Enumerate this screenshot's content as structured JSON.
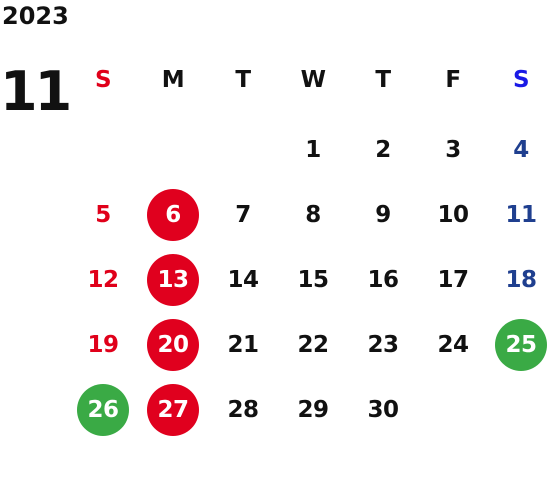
{
  "calendar": {
    "year": "2023",
    "month": "11",
    "weekdays": [
      "S",
      "M",
      "T",
      "W",
      "T",
      "F",
      "S"
    ],
    "days": [
      {
        "d": "1",
        "style": "normal"
      },
      {
        "d": "2",
        "style": "normal"
      },
      {
        "d": "3",
        "style": "normal"
      },
      {
        "d": "4",
        "style": "saturday"
      },
      {
        "d": "5",
        "style": "sunday"
      },
      {
        "d": "6",
        "style": "closed-red"
      },
      {
        "d": "7",
        "style": "normal"
      },
      {
        "d": "8",
        "style": "normal"
      },
      {
        "d": "9",
        "style": "normal"
      },
      {
        "d": "10",
        "style": "normal"
      },
      {
        "d": "11",
        "style": "saturday"
      },
      {
        "d": "12",
        "style": "sunday"
      },
      {
        "d": "13",
        "style": "closed-red"
      },
      {
        "d": "14",
        "style": "normal"
      },
      {
        "d": "15",
        "style": "normal"
      },
      {
        "d": "16",
        "style": "normal"
      },
      {
        "d": "17",
        "style": "normal"
      },
      {
        "d": "18",
        "style": "saturday"
      },
      {
        "d": "19",
        "style": "sunday"
      },
      {
        "d": "20",
        "style": "closed-red"
      },
      {
        "d": "21",
        "style": "normal"
      },
      {
        "d": "22",
        "style": "normal"
      },
      {
        "d": "23",
        "style": "normal"
      },
      {
        "d": "24",
        "style": "normal"
      },
      {
        "d": "25",
        "style": "closed-green"
      },
      {
        "d": "26",
        "style": "closed-green"
      },
      {
        "d": "27",
        "style": "closed-red"
      },
      {
        "d": "28",
        "style": "normal"
      },
      {
        "d": "29",
        "style": "normal"
      },
      {
        "d": "30",
        "style": "normal"
      }
    ],
    "first_weekday_index": 3
  },
  "colors": {
    "text": "#111111",
    "sunday": "#e0001a",
    "saturday_header": "#1a1ae6",
    "saturday_day": "#1f3f8f",
    "red_circle": "#e0001e",
    "green_circle": "#3aaa45",
    "circle_text": "#ffffff"
  }
}
